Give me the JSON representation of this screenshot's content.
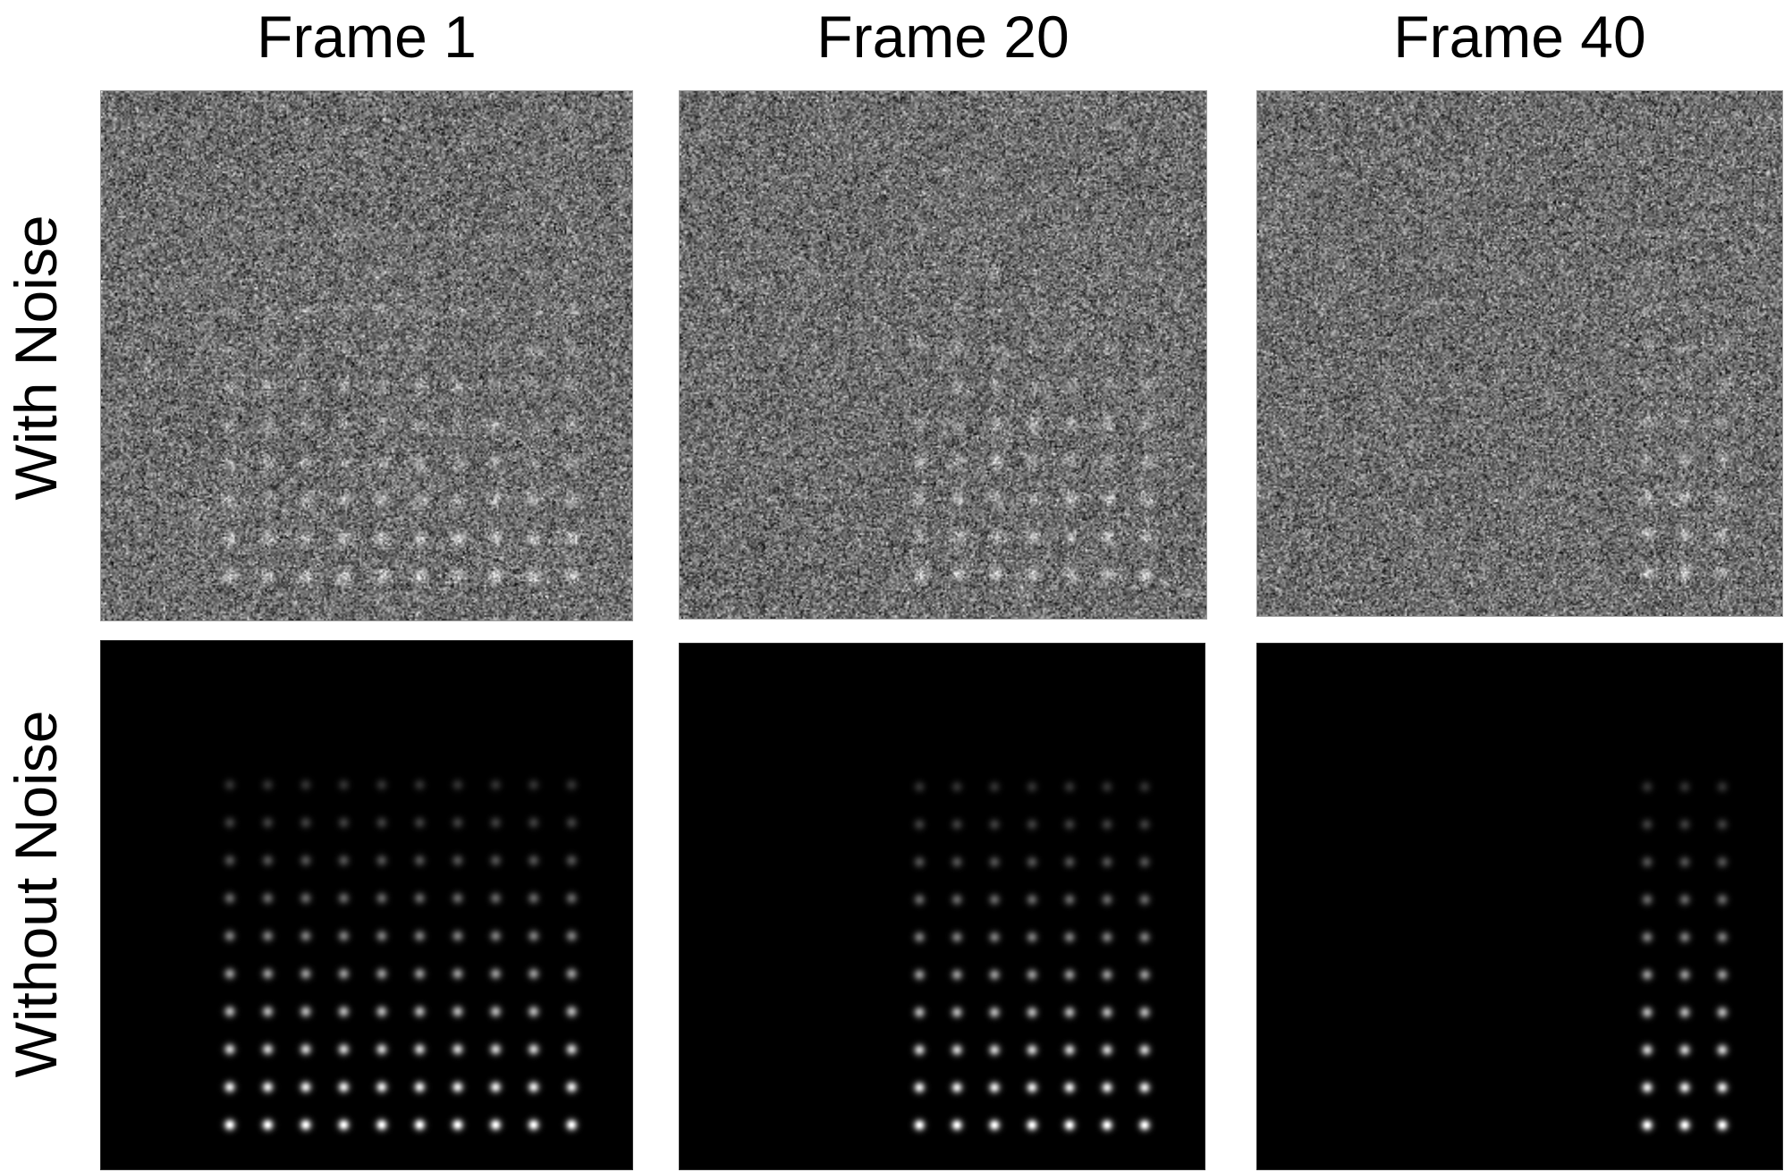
{
  "columns": [
    {
      "title": "Frame 1"
    },
    {
      "title": "Frame 20"
    },
    {
      "title": "Frame 40"
    }
  ],
  "rows": [
    {
      "label": "With Noise",
      "noise": true
    },
    {
      "label": "Without  Noise",
      "noise": false
    }
  ],
  "panels": [
    {
      "frame": "Frame 1",
      "spot_columns": 10,
      "spot_rows": 10,
      "start_column": 0
    },
    {
      "frame": "Frame 20",
      "spot_columns": 7,
      "spot_rows": 10,
      "start_column": 0
    },
    {
      "frame": "Frame 40",
      "spot_columns": 3,
      "spot_rows": 10,
      "start_column": 0
    }
  ],
  "colors": {
    "background": "#ffffff",
    "clean_background": "#000000",
    "noise_background": "#6e6e6e",
    "spot": "#ffffff"
  }
}
